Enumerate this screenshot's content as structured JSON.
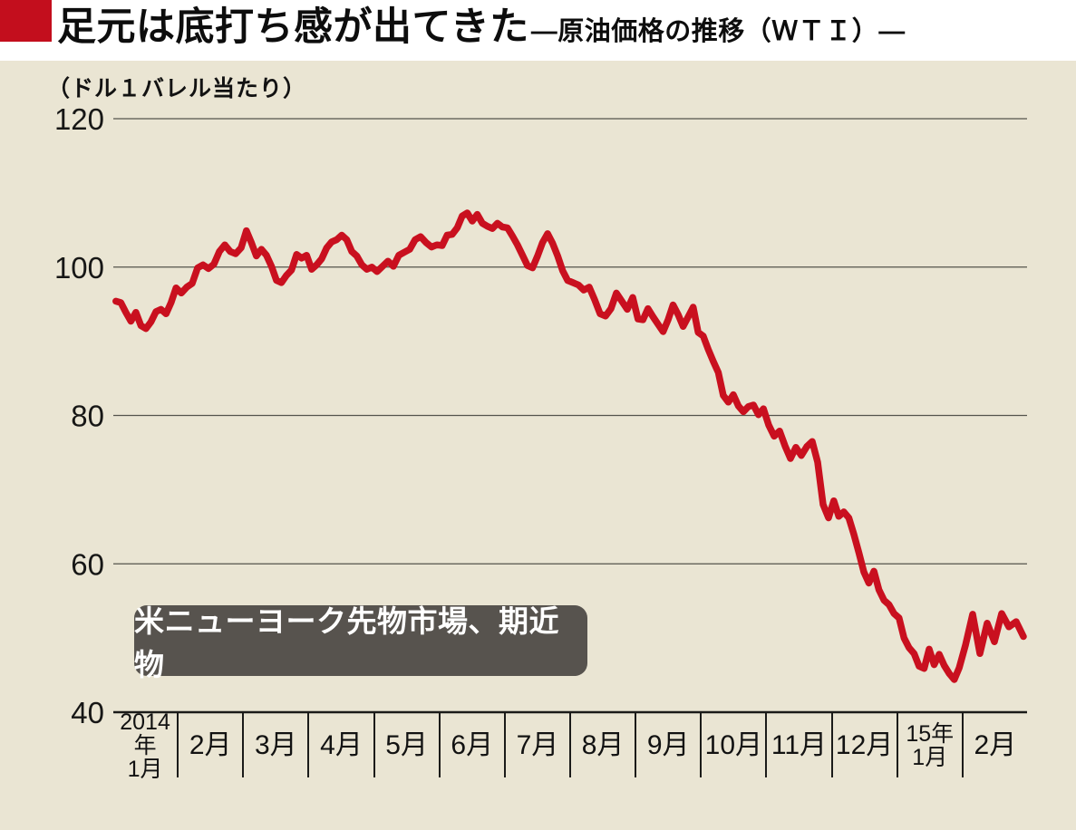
{
  "header": {
    "accent_color": "#c30e1d",
    "title": "足元は底打ち感が出てきた",
    "subtitle": "―原油価格の推移（ＷＴＩ）―"
  },
  "chart": {
    "unit_label": "（ドル１バレル当たり）",
    "annotation": "米ニューヨーク先物市場、期近物",
    "background_color": "#eae5d3",
    "annotation_bg": "#57534e",
    "grid_color": "#54544c",
    "axis_color": "#1b1b19"
  },
  "chart_data": {
    "type": "line",
    "title": "原油価格の推移（WTI）",
    "ylabel": "（ドル１バレル当たり）",
    "unit": "ドル/バレル",
    "ylim": [
      40,
      120
    ],
    "yticks": [
      120,
      100,
      80,
      60,
      40
    ],
    "grid": "horizontal",
    "legend_note": "米ニューヨーク先物市場、期近物",
    "line_color": "#c9101f",
    "x_categories": [
      "2014年\n1月",
      "2月",
      "3月",
      "4月",
      "5月",
      "6月",
      "7月",
      "8月",
      "9月",
      "10月",
      "11月",
      "12月",
      "15年\n1月",
      "2月"
    ],
    "series": [
      {
        "name": "WTI原油先物価格（期近物）",
        "monthly_values": [
          [
            95.4,
            95.2,
            93.9,
            92.7,
            93.9,
            92.1,
            91.7,
            92.6,
            94.0,
            94.3,
            93.7,
            95.2,
            97.2
          ],
          [
            96.5,
            97.3,
            97.8,
            99.9,
            100.3,
            99.8,
            100.4,
            102.1,
            103.0,
            102.1,
            101.8,
            102.6
          ],
          [
            104.9,
            103.3,
            101.5,
            102.4,
            101.6,
            100.1,
            98.2,
            97.9,
            98.9,
            99.6,
            101.7,
            101.2,
            101.6
          ],
          [
            99.7,
            100.3,
            101.1,
            102.6,
            103.4,
            103.7,
            104.3,
            103.7,
            102.1,
            101.5,
            100.3,
            99.7,
            100.0
          ],
          [
            99.4,
            100.1,
            100.8,
            100.1,
            101.6,
            102.0,
            102.4,
            103.7,
            104.1,
            103.3,
            102.7,
            103.0
          ],
          [
            102.9,
            104.3,
            104.4,
            105.3,
            106.9,
            107.3,
            106.2,
            107.1,
            105.9,
            105.5,
            105.2,
            105.9,
            105.4
          ],
          [
            105.3,
            104.2,
            103.0,
            101.6,
            100.2,
            99.9,
            101.5,
            103.3,
            104.5,
            103.2,
            101.5,
            99.5,
            98.2
          ],
          [
            97.9,
            97.6,
            96.9,
            97.3,
            95.6,
            93.7,
            93.4,
            94.4,
            96.5,
            95.4,
            94.3,
            95.9
          ],
          [
            93.0,
            92.9,
            94.4,
            93.3,
            92.3,
            91.3,
            92.9,
            94.9,
            93.6,
            92.0,
            93.3,
            94.6,
            91.2
          ],
          [
            90.7,
            88.9,
            87.3,
            85.8,
            82.7,
            81.8,
            82.8,
            81.3,
            80.5,
            81.2,
            81.4,
            80.1,
            80.9
          ],
          [
            78.7,
            77.2,
            77.9,
            75.9,
            74.2,
            75.7,
            74.6,
            75.8,
            76.5,
            73.7,
            68.0,
            66.2
          ],
          [
            68.5,
            66.4,
            67.0,
            66.2,
            64.0,
            61.5,
            58.9,
            57.4,
            59.0,
            56.5,
            55.1,
            54.5,
            53.3
          ],
          [
            52.7,
            50.0,
            48.7,
            47.9,
            46.2,
            45.9,
            48.5,
            46.4,
            47.8,
            46.3,
            45.2,
            44.4,
            46.0
          ],
          [
            49.0,
            53.2,
            47.9,
            52.0,
            49.5,
            53.3,
            51.5,
            52.2,
            50.2
          ]
        ]
      }
    ]
  }
}
